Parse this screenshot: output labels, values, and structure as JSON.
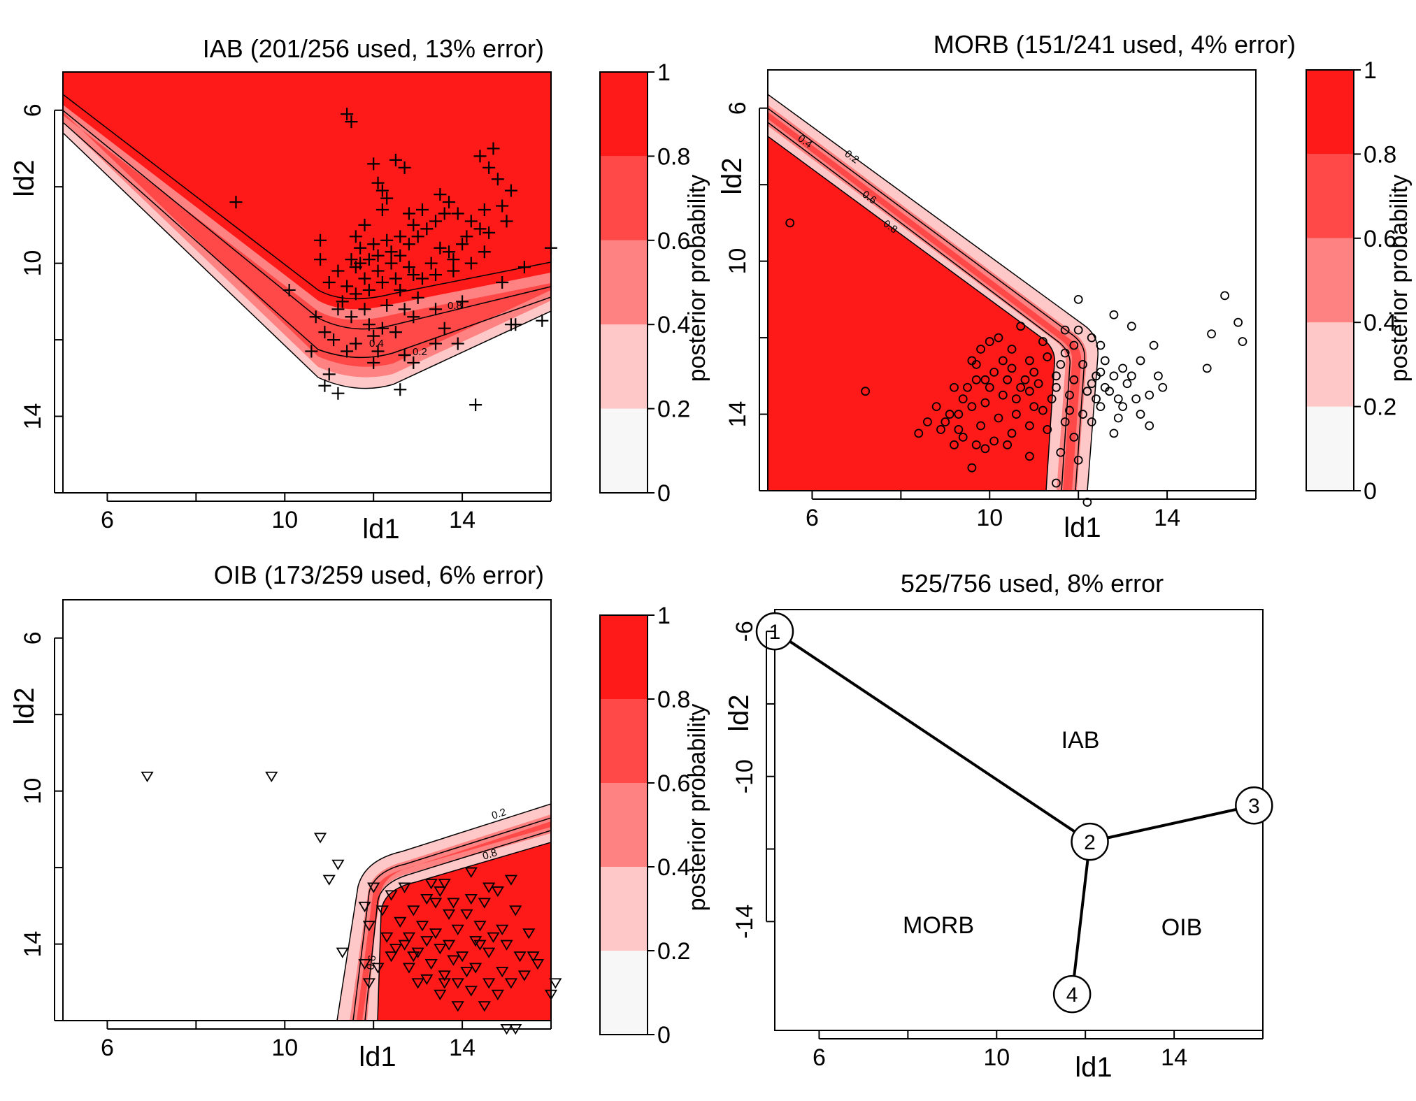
{
  "chart_data": [
    {
      "type": "contour",
      "title": "IAB (201/256 used, 13% error)",
      "xlabel": "ld1",
      "ylabel": "ld2",
      "xlim": [
        5,
        16
      ],
      "ylim": [
        5,
        16
      ],
      "y_reversed": true,
      "xticks": [
        "6",
        "10",
        "14"
      ],
      "yticks": [
        "6",
        "10",
        "14"
      ],
      "marker": "plus",
      "colorbar": {
        "label": "posterior probability",
        "ticks": [
          "0",
          "0.2",
          "0.4",
          "0.6",
          "0.8",
          "1"
        ]
      },
      "contour_levels": [
        "0.2",
        "0.4",
        "0.6",
        "0.8"
      ],
      "points": [
        [
          8.9,
          8.4
        ],
        [
          10.1,
          10.7
        ],
        [
          10.7,
          11.4
        ],
        [
          10.9,
          11.8
        ],
        [
          11.1,
          12.0
        ],
        [
          11.6,
          12.1
        ],
        [
          12.1,
          12.3
        ],
        [
          12.5,
          11.8
        ],
        [
          12.9,
          11.4
        ],
        [
          13.4,
          11.2
        ],
        [
          14.0,
          11.0
        ],
        [
          15.2,
          11.6
        ],
        [
          15.1,
          11.6
        ],
        [
          11.4,
          12.3
        ],
        [
          11.0,
          12.9
        ],
        [
          10.9,
          13.2
        ],
        [
          11.2,
          13.4
        ],
        [
          12.6,
          13.3
        ],
        [
          12.9,
          12.6
        ],
        [
          13.4,
          12.1
        ],
        [
          13.9,
          12.1
        ],
        [
          14.3,
          13.7
        ],
        [
          15.8,
          11.5
        ],
        [
          12.5,
          7.3
        ],
        [
          12.8,
          8.7
        ],
        [
          11.4,
          6.1
        ],
        [
          11.5,
          6.3
        ],
        [
          12.0,
          7.4
        ],
        [
          12.7,
          7.5
        ],
        [
          12.1,
          7.9
        ],
        [
          12.2,
          8.1
        ],
        [
          12.3,
          8.3
        ],
        [
          12.2,
          8.6
        ],
        [
          11.8,
          9.0
        ],
        [
          11.6,
          9.3
        ],
        [
          11.5,
          9.9
        ],
        [
          11.7,
          9.6
        ],
        [
          12.0,
          9.5
        ],
        [
          12.3,
          9.4
        ],
        [
          12.6,
          9.3
        ],
        [
          12.8,
          9.5
        ],
        [
          13.0,
          9.3
        ],
        [
          13.2,
          9.1
        ],
        [
          13.4,
          8.9
        ],
        [
          13.6,
          8.7
        ],
        [
          13.9,
          8.7
        ],
        [
          14.2,
          8.9
        ],
        [
          14.5,
          8.6
        ],
        [
          14.9,
          8.5
        ],
        [
          14.8,
          7.8
        ],
        [
          14.6,
          7.5
        ],
        [
          14.4,
          7.2
        ],
        [
          14.7,
          7.0
        ],
        [
          15.1,
          8.1
        ],
        [
          15.0,
          8.9
        ],
        [
          14.5,
          9.7
        ],
        [
          14.2,
          10.0
        ],
        [
          13.8,
          10.2
        ],
        [
          13.4,
          10.3
        ],
        [
          13.1,
          10.4
        ],
        [
          12.8,
          10.1
        ],
        [
          12.4,
          10.0
        ],
        [
          12.1,
          10.2
        ],
        [
          11.8,
          10.4
        ],
        [
          11.6,
          10.8
        ],
        [
          11.3,
          11.0
        ],
        [
          11.5,
          11.4
        ],
        [
          11.9,
          11.6
        ],
        [
          12.3,
          11.1
        ],
        [
          12.6,
          10.7
        ],
        [
          12.9,
          10.3
        ],
        [
          13.3,
          10.0
        ],
        [
          13.7,
          9.7
        ],
        [
          14.1,
          9.3
        ],
        [
          14.4,
          9.1
        ],
        [
          13.5,
          9.6
        ],
        [
          13.8,
          9.9
        ],
        [
          13.0,
          10.9
        ],
        [
          12.7,
          11.2
        ],
        [
          12.2,
          11.7
        ],
        [
          12.0,
          11.9
        ],
        [
          11.8,
          11.2
        ],
        [
          11.9,
          10.7
        ],
        [
          12.2,
          10.5
        ],
        [
          12.5,
          10.4
        ],
        [
          12.6,
          9.8
        ],
        [
          12.4,
          9.7
        ],
        [
          12.1,
          9.8
        ],
        [
          11.9,
          9.9
        ],
        [
          11.6,
          10.1
        ],
        [
          11.2,
          10.2
        ],
        [
          11.0,
          10.5
        ],
        [
          11.2,
          11.2
        ],
        [
          11.4,
          10.6
        ],
        [
          11.7,
          10.0
        ],
        [
          12.9,
          9.0
        ],
        [
          13.1,
          8.6
        ],
        [
          13.5,
          8.2
        ],
        [
          13.7,
          8.4
        ],
        [
          14.0,
          9.5
        ],
        [
          14.6,
          9.2
        ],
        [
          15.4,
          10.1
        ],
        [
          16.0,
          9.6
        ],
        [
          14.9,
          10.5
        ],
        [
          13.6,
          11.7
        ],
        [
          12.0,
          12.6
        ],
        [
          10.6,
          12.3
        ],
        [
          10.8,
          9.9
        ],
        [
          10.8,
          9.4
        ],
        [
          12.7,
          12.4
        ]
      ]
    },
    {
      "type": "contour",
      "title": "MORB (151/241 used, 4% error)",
      "xlabel": "ld1",
      "ylabel": "ld2",
      "xlim": [
        5,
        16
      ],
      "ylim": [
        5,
        16
      ],
      "y_reversed": true,
      "xticks": [
        "6",
        "10",
        "14"
      ],
      "yticks": [
        "6",
        "10",
        "14"
      ],
      "marker": "circle",
      "colorbar": {
        "label": "posterior probability",
        "ticks": [
          "0",
          "0.2",
          "0.4",
          "0.6",
          "0.8",
          "1"
        ]
      },
      "contour_levels": [
        "0.2",
        "0.4",
        "0.6",
        "0.8"
      ],
      "points": [
        [
          5.5,
          9.0
        ],
        [
          7.2,
          13.4
        ],
        [
          15.3,
          10.9
        ],
        [
          15.0,
          11.9
        ],
        [
          15.7,
          12.1
        ],
        [
          14.9,
          12.8
        ],
        [
          15.6,
          11.6
        ],
        [
          13.9,
          13.3
        ],
        [
          12.8,
          11.4
        ],
        [
          12.0,
          11.0
        ],
        [
          12.0,
          11.8
        ],
        [
          13.2,
          11.7
        ],
        [
          13.7,
          12.2
        ],
        [
          13.4,
          12.6
        ],
        [
          13.8,
          13.0
        ],
        [
          13.2,
          13.0
        ],
        [
          13.6,
          13.5
        ],
        [
          13.4,
          14.0
        ],
        [
          13.6,
          14.3
        ],
        [
          12.3,
          12.0
        ],
        [
          10.0,
          12.1
        ],
        [
          9.8,
          12.3
        ],
        [
          9.6,
          12.6
        ],
        [
          10.0,
          13.3
        ],
        [
          10.9,
          13.4
        ],
        [
          8.6,
          14.2
        ],
        [
          8.4,
          14.5
        ],
        [
          9.6,
          15.4
        ],
        [
          9.3,
          14.4
        ],
        [
          9.1,
          14.0
        ],
        [
          9.4,
          13.6
        ],
        [
          9.7,
          13.1
        ],
        [
          10.1,
          12.9
        ],
        [
          10.5,
          12.8
        ],
        [
          10.9,
          12.6
        ],
        [
          11.3,
          12.5
        ],
        [
          11.7,
          12.4
        ],
        [
          12.1,
          12.7
        ],
        [
          12.5,
          12.9
        ],
        [
          12.8,
          13.0
        ],
        [
          13.1,
          13.2
        ],
        [
          12.7,
          13.4
        ],
        [
          12.3,
          13.2
        ],
        [
          11.9,
          13.1
        ],
        [
          11.5,
          13.0
        ],
        [
          11.1,
          13.2
        ],
        [
          10.7,
          13.3
        ],
        [
          10.3,
          13.5
        ],
        [
          9.9,
          13.7
        ],
        [
          9.6,
          13.8
        ],
        [
          9.3,
          14.0
        ],
        [
          9.0,
          14.2
        ],
        [
          8.9,
          14.4
        ],
        [
          9.4,
          14.6
        ],
        [
          9.8,
          14.3
        ],
        [
          10.2,
          14.1
        ],
        [
          10.6,
          14.0
        ],
        [
          11.0,
          13.8
        ],
        [
          11.4,
          13.6
        ],
        [
          11.8,
          13.5
        ],
        [
          12.2,
          13.4
        ],
        [
          12.6,
          13.3
        ],
        [
          12.9,
          13.6
        ],
        [
          12.5,
          13.8
        ],
        [
          12.1,
          14.0
        ],
        [
          11.7,
          14.2
        ],
        [
          11.3,
          14.4
        ],
        [
          10.9,
          14.3
        ],
        [
          10.5,
          14.5
        ],
        [
          10.1,
          14.7
        ],
        [
          9.7,
          14.8
        ],
        [
          12.3,
          14.2
        ],
        [
          11.9,
          14.6
        ],
        [
          11.6,
          15.0
        ],
        [
          12.0,
          15.2
        ],
        [
          12.4,
          13.0
        ],
        [
          11.6,
          12.7
        ],
        [
          11.0,
          12.9
        ],
        [
          10.4,
          13.1
        ],
        [
          9.9,
          13.1
        ],
        [
          9.5,
          13.3
        ],
        [
          10.6,
          13.6
        ],
        [
          11.2,
          13.9
        ],
        [
          11.8,
          13.9
        ],
        [
          12.4,
          13.6
        ],
        [
          12.8,
          14.5
        ],
        [
          13.0,
          13.8
        ],
        [
          12.6,
          12.6
        ],
        [
          11.9,
          12.2
        ],
        [
          11.2,
          12.1
        ],
        [
          10.5,
          12.3
        ],
        [
          10.8,
          13.1
        ],
        [
          11.5,
          13.3
        ],
        [
          9.7,
          12.7
        ],
        [
          9.2,
          13.3
        ],
        [
          8.8,
          13.8
        ],
        [
          9.2,
          14.8
        ],
        [
          9.9,
          14.9
        ],
        [
          10.4,
          14.8
        ],
        [
          11.5,
          15.8
        ],
        [
          12.2,
          16.3
        ],
        [
          10.9,
          15.1
        ],
        [
          12.9,
          14.1
        ],
        [
          13.3,
          13.6
        ],
        [
          13.0,
          12.8
        ],
        [
          12.5,
          12.2
        ],
        [
          11.7,
          11.8
        ],
        [
          10.7,
          11.7
        ],
        [
          10.2,
          12.0
        ],
        [
          10.3,
          12.6
        ]
      ]
    },
    {
      "type": "contour",
      "title": "OIB (173/259 used, 6% error)",
      "xlabel": "ld1",
      "ylabel": "ld2",
      "xlim": [
        5,
        16
      ],
      "ylim": [
        5,
        16
      ],
      "y_reversed": true,
      "xticks": [
        "6",
        "10",
        "14"
      ],
      "yticks": [
        "6",
        "10",
        "14"
      ],
      "marker": "triangle-down",
      "colorbar": {
        "label": "posterior probability",
        "ticks": [
          "0",
          "0.2",
          "0.4",
          "0.6",
          "0.8",
          "1"
        ]
      },
      "contour_levels": [
        "0.2",
        "0.4",
        "0.6",
        "0.8"
      ],
      "points": [
        [
          6.9,
          9.6
        ],
        [
          9.7,
          9.6
        ],
        [
          10.8,
          11.2
        ],
        [
          11.0,
          12.3
        ],
        [
          11.2,
          11.9
        ],
        [
          11.3,
          14.2
        ],
        [
          11.8,
          13.0
        ],
        [
          12.0,
          12.5
        ],
        [
          12.7,
          12.5
        ],
        [
          13.6,
          12.4
        ],
        [
          14.2,
          12.1
        ],
        [
          11.9,
          13.5
        ],
        [
          11.8,
          14.5
        ],
        [
          11.9,
          15.0
        ],
        [
          12.3,
          13.8
        ],
        [
          12.6,
          13.4
        ],
        [
          12.9,
          13.1
        ],
        [
          13.2,
          12.8
        ],
        [
          13.5,
          12.6
        ],
        [
          13.8,
          12.9
        ],
        [
          14.1,
          13.2
        ],
        [
          14.4,
          13.5
        ],
        [
          14.7,
          13.8
        ],
        [
          15.0,
          14.0
        ],
        [
          15.3,
          14.3
        ],
        [
          14.9,
          14.7
        ],
        [
          14.6,
          15.0
        ],
        [
          14.2,
          15.2
        ],
        [
          13.9,
          15.0
        ],
        [
          13.6,
          14.8
        ],
        [
          13.3,
          14.5
        ],
        [
          13.0,
          14.2
        ],
        [
          12.7,
          14.0
        ],
        [
          12.4,
          14.3
        ],
        [
          12.8,
          14.6
        ],
        [
          13.2,
          14.9
        ],
        [
          13.5,
          15.3
        ],
        [
          13.9,
          15.6
        ],
        [
          14.3,
          14.6
        ],
        [
          14.6,
          14.2
        ],
        [
          14.9,
          13.6
        ],
        [
          15.2,
          13.1
        ],
        [
          15.5,
          13.7
        ],
        [
          14.0,
          14.3
        ],
        [
          13.7,
          14.0
        ],
        [
          13.4,
          13.7
        ],
        [
          13.1,
          13.5
        ],
        [
          12.8,
          13.8
        ],
        [
          12.5,
          14.1
        ],
        [
          14.5,
          12.9
        ],
        [
          14.8,
          12.6
        ],
        [
          15.1,
          12.3
        ],
        [
          14.2,
          12.8
        ],
        [
          13.9,
          13.6
        ],
        [
          14.4,
          14.0
        ],
        [
          14.1,
          14.7
        ],
        [
          13.8,
          14.4
        ],
        [
          13.5,
          14.1
        ],
        [
          13.2,
          13.9
        ],
        [
          12.9,
          14.3
        ],
        [
          13.6,
          15.0
        ],
        [
          15.1,
          15.0
        ],
        [
          15.4,
          14.8
        ],
        [
          15.6,
          14.3
        ],
        [
          14.8,
          15.3
        ],
        [
          14.5,
          15.6
        ],
        [
          15.0,
          16.2
        ],
        [
          15.2,
          16.2
        ],
        [
          16.1,
          15.0
        ],
        [
          16.0,
          15.3
        ],
        [
          13.4,
          12.9
        ],
        [
          12.2,
          13.1
        ],
        [
          12.4,
          12.7
        ],
        [
          12.1,
          14.6
        ],
        [
          15.7,
          14.5
        ],
        [
          13.0,
          15.0
        ],
        [
          14.3,
          13.9
        ],
        [
          13.7,
          13.2
        ],
        [
          13.3,
          12.4
        ],
        [
          14.6,
          12.5
        ]
      ]
    },
    {
      "type": "diagram",
      "title": "525/756 used, 8% error",
      "xlabel": "ld1",
      "ylabel": "ld2",
      "xlim": [
        5,
        16
      ],
      "ylim": [
        -17,
        -5.4
      ],
      "xticks": [
        "6",
        "10",
        "14"
      ],
      "yticks": [
        "-6",
        "-10",
        "-14"
      ],
      "region_labels": [
        "IAB",
        "MORB",
        "OIB"
      ],
      "nodes": [
        {
          "label": "1",
          "x": 5.0,
          "y": -6.0
        },
        {
          "label": "2",
          "x": 12.1,
          "y": -11.8
        },
        {
          "label": "3",
          "x": 15.8,
          "y": -10.8
        },
        {
          "label": "4",
          "x": 11.7,
          "y": -16.0
        }
      ],
      "edges": [
        [
          "1",
          "2"
        ],
        [
          "2",
          "3"
        ],
        [
          "2",
          "4"
        ]
      ]
    }
  ]
}
